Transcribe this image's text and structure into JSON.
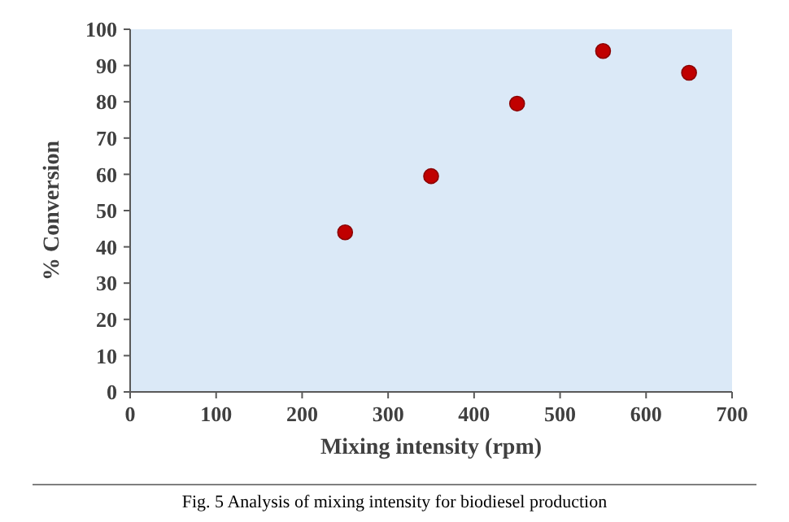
{
  "chart_data": {
    "type": "scatter",
    "xlabel": "Mixing intensity (rpm)",
    "ylabel": "% Conversion",
    "x": [
      250,
      350,
      450,
      550,
      650
    ],
    "values": [
      44,
      59.5,
      79.5,
      94,
      88
    ],
    "color": "#c00000",
    "marker": "circle",
    "xlim": [
      0,
      700
    ],
    "xticks": [
      0,
      100,
      200,
      300,
      400,
      500,
      600,
      700
    ],
    "ylim": [
      0,
      100
    ],
    "yticks": [
      0,
      10,
      20,
      30,
      40,
      50,
      60,
      70,
      80,
      90,
      100
    ],
    "annotations": [
      "Fig. 5 Analysis of mixing intensity for biodiesel production"
    ]
  }
}
